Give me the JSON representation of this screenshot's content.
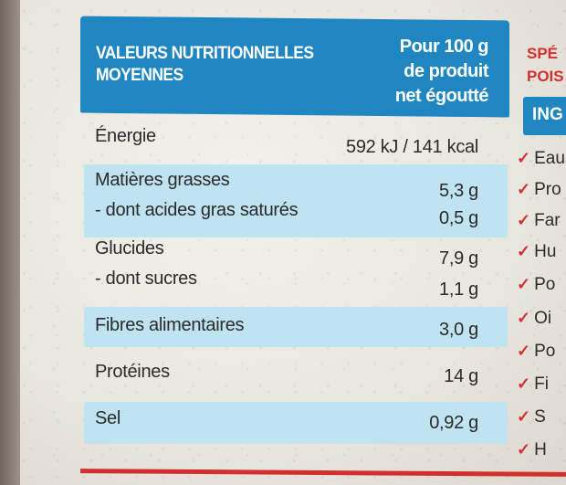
{
  "table": {
    "header_left": [
      "VALEURS NUTRITIONNELLES",
      "MOYENNES"
    ],
    "header_right": [
      "Pour 100 g",
      "de produit",
      "net égoutté"
    ],
    "rows": [
      {
        "label": "Énergie",
        "value": "592 kJ / 141 kcal"
      },
      {
        "label": "Matières grasses",
        "value": "5,3 g"
      },
      {
        "label": "- dont acides gras saturés",
        "value": "0,5 g"
      },
      {
        "label": "Glucides",
        "value": "7,9 g"
      },
      {
        "label": "- dont sucres",
        "value": "1,1 g"
      },
      {
        "label": "Fibres alimentaires",
        "value": "3,0 g"
      },
      {
        "label": "Protéines",
        "value": "14 g"
      },
      {
        "label": "Sel",
        "value": "0,92 g"
      }
    ]
  },
  "right_column": {
    "title_lines": [
      "SPÉ",
      "POIS"
    ],
    "ingredients_label": "ING",
    "items": [
      "Eau",
      "Pro",
      "Far",
      "Hu",
      "Po",
      "Oi",
      "Po",
      "Fi",
      "S",
      "H"
    ]
  },
  "colors": {
    "header_blue": "#1f86c1",
    "band_light_blue": "#bfe3f1",
    "accent_red": "#d2302f"
  }
}
